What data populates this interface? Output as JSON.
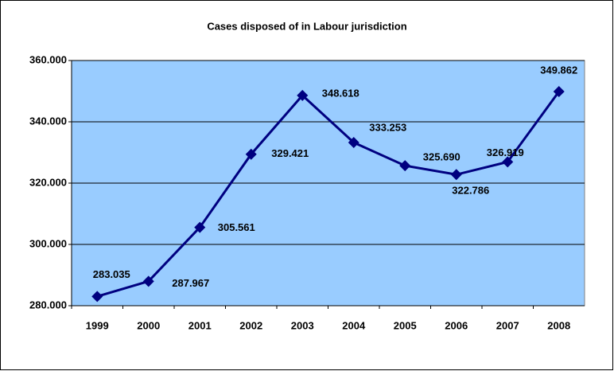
{
  "chart_data": {
    "type": "line",
    "title": "Cases disposed of in Labour jurisdiction",
    "categories": [
      "1999",
      "2000",
      "2001",
      "2002",
      "2003",
      "2004",
      "2005",
      "2006",
      "2007",
      "2008"
    ],
    "series": [
      {
        "name": "Cases disposed of",
        "color": "#000080",
        "values": [
          283035,
          287967,
          305561,
          329421,
          348618,
          333253,
          325690,
          322786,
          326919,
          349862
        ],
        "value_labels": [
          "283.035",
          "287.967",
          "305.561",
          "329.421",
          "348.618",
          "333.253",
          "325.690",
          "322.786",
          "326.919",
          "349.862"
        ]
      }
    ],
    "ylim": [
      280000,
      360000
    ],
    "yticks": [
      {
        "value": 280000,
        "label": "280.000"
      },
      {
        "value": 300000,
        "label": "300.000"
      },
      {
        "value": 320000,
        "label": "320.000"
      },
      {
        "value": 340000,
        "label": "340.000"
      },
      {
        "value": 360000,
        "label": "360.000"
      }
    ],
    "grid": true,
    "plot_background": "#99ccff"
  }
}
